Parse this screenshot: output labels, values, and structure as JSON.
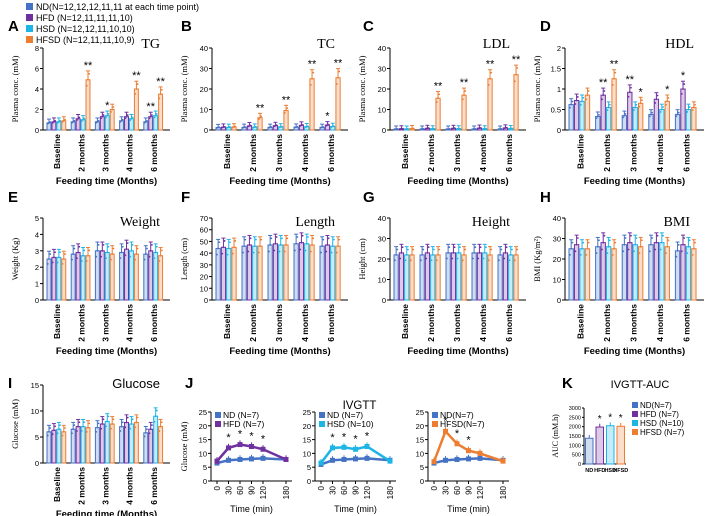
{
  "colors": {
    "ND": "#4472C4",
    "HFD": "#7030A0",
    "HSD": "#1DB4E6",
    "HFSD": "#ED7D31",
    "axis": "#000000"
  },
  "legend": {
    "groups": [
      "ND",
      "HFD",
      "HSD",
      "HFSD"
    ],
    "labels": [
      "ND(N=12,12,12,11,11 at each time point)",
      "HFD (N=12,11,11,11,10)",
      "HSD (N=12,12,11,10,10)",
      "HFSD (N=12,11,11,10,9)"
    ]
  },
  "chart_data": [
    {
      "id": "A",
      "type": "bar",
      "title": "TG",
      "ylabel": "Plasma conc. (mM)",
      "xlabel": "Feeding time (Months)",
      "ylim": [
        0,
        8
      ],
      "yticks": [
        0,
        2,
        4,
        6,
        8
      ],
      "categories": [
        "Baseline",
        "2 months",
        "3 months",
        "4 months",
        "6 months"
      ],
      "series": [
        {
          "name": "ND",
          "values": [
            0.7,
            0.8,
            0.8,
            0.9,
            0.8
          ]
        },
        {
          "name": "HFD",
          "values": [
            0.8,
            1.1,
            1.3,
            1.3,
            1.3
          ]
        },
        {
          "name": "HSD",
          "values": [
            0.8,
            1.0,
            1.4,
            1.1,
            1.4
          ]
        },
        {
          "name": "HFSD",
          "values": [
            0.9,
            4.9,
            2.0,
            4.0,
            3.5
          ]
        }
      ],
      "annotations": [
        {
          "category": 1,
          "series": 3,
          "label": "**"
        },
        {
          "category": 2,
          "series": 2,
          "label": "*"
        },
        {
          "category": 3,
          "series": 3,
          "label": "**"
        },
        {
          "category": 4,
          "series": 1,
          "label": "**"
        },
        {
          "category": 4,
          "series": 3,
          "label": "**"
        }
      ]
    },
    {
      "id": "B",
      "type": "bar",
      "title": "TC",
      "ylabel": "Plasma conc. (mM)",
      "xlabel": "Feeding time (Months)",
      "ylim": [
        0,
        40
      ],
      "yticks": [
        0,
        10,
        20,
        30,
        40
      ],
      "categories": [
        "Baseline",
        "2 months",
        "3 months",
        "4 months",
        "6 months"
      ],
      "series": [
        {
          "name": "ND",
          "values": [
            1.2,
            1.3,
            1.3,
            1.4,
            1.3
          ]
        },
        {
          "name": "HFD",
          "values": [
            1.4,
            2.0,
            2.1,
            2.3,
            2.4
          ]
        },
        {
          "name": "HSD",
          "values": [
            1.3,
            1.4,
            1.5,
            1.6,
            1.7
          ]
        },
        {
          "name": "HFSD",
          "values": [
            1.5,
            6.0,
            9.5,
            25.0,
            25.5
          ]
        }
      ],
      "annotations": [
        {
          "category": 1,
          "series": 3,
          "label": "**"
        },
        {
          "category": 2,
          "series": 3,
          "label": "**"
        },
        {
          "category": 3,
          "series": 3,
          "label": "**"
        },
        {
          "category": 4,
          "series": 1,
          "label": "*"
        },
        {
          "category": 4,
          "series": 3,
          "label": "**"
        }
      ]
    },
    {
      "id": "C",
      "type": "bar",
      "title": "LDL",
      "ylabel": "Plasma conc. (mM)",
      "xlabel": "Feeding time (Months)",
      "ylim": [
        0,
        40
      ],
      "yticks": [
        0,
        10,
        20,
        30,
        40
      ],
      "categories": [
        "Baseline",
        "2 months",
        "3 months",
        "4 months",
        "6 months"
      ],
      "series": [
        {
          "name": "ND",
          "values": [
            0.5,
            0.5,
            0.5,
            0.5,
            0.5
          ]
        },
        {
          "name": "HFD",
          "values": [
            0.6,
            0.8,
            0.8,
            0.9,
            1.0
          ]
        },
        {
          "name": "HSD",
          "values": [
            0.5,
            0.6,
            0.6,
            0.6,
            0.7
          ]
        },
        {
          "name": "HFSD",
          "values": [
            0.7,
            15.5,
            17.0,
            25.0,
            27.0
          ]
        }
      ],
      "annotations": [
        {
          "category": 1,
          "series": 3,
          "label": "**"
        },
        {
          "category": 2,
          "series": 3,
          "label": "**"
        },
        {
          "category": 3,
          "series": 3,
          "label": "**"
        },
        {
          "category": 4,
          "series": 3,
          "label": "**"
        }
      ]
    },
    {
      "id": "D",
      "type": "bar",
      "title": "HDL",
      "ylabel": "Plasma conc. (mM)",
      "xlabel": "Feeding time (Months)",
      "ylim": [
        0,
        2.0
      ],
      "yticks": [
        0.0,
        0.5,
        1.0,
        1.5,
        2.0
      ],
      "categories": [
        "Baseline",
        "2 months",
        "3 months",
        "4 months",
        "6 months"
      ],
      "series": [
        {
          "name": "ND",
          "values": [
            0.62,
            0.33,
            0.35,
            0.38,
            0.38
          ]
        },
        {
          "name": "HFD",
          "values": [
            0.72,
            0.85,
            0.92,
            0.75,
            1.0
          ]
        },
        {
          "name": "HSD",
          "values": [
            0.7,
            0.55,
            0.55,
            0.5,
            0.5
          ]
        },
        {
          "name": "HFSD",
          "values": [
            0.85,
            1.25,
            0.65,
            0.7,
            0.55
          ]
        }
      ],
      "annotations": [
        {
          "category": 1,
          "series": 1,
          "label": "**"
        },
        {
          "category": 1,
          "series": 3,
          "label": "**"
        },
        {
          "category": 2,
          "series": 1,
          "label": "**"
        },
        {
          "category": 2,
          "series": 3,
          "label": "*"
        },
        {
          "category": 3,
          "series": 3,
          "label": "*"
        },
        {
          "category": 4,
          "series": 1,
          "label": "*"
        }
      ]
    },
    {
      "id": "E",
      "type": "bar",
      "title": "Weight",
      "ylabel": "Weight (Kg)",
      "xlabel": "Feeding time (Months)",
      "ylim": [
        0,
        5
      ],
      "yticks": [
        0,
        1,
        2,
        3,
        4,
        5
      ],
      "categories": [
        "Baseline",
        "2 months",
        "3 months",
        "4 months",
        "6 months"
      ],
      "series": [
        {
          "name": "ND",
          "values": [
            2.5,
            2.8,
            3.0,
            2.9,
            2.8
          ]
        },
        {
          "name": "HFD",
          "values": [
            2.6,
            2.9,
            3.0,
            3.1,
            3.0
          ]
        },
        {
          "name": "HSD",
          "values": [
            2.6,
            2.7,
            2.9,
            3.0,
            2.9
          ]
        },
        {
          "name": "HFSD",
          "values": [
            2.5,
            2.7,
            2.8,
            2.8,
            2.7
          ]
        }
      ],
      "annotations": []
    },
    {
      "id": "F",
      "type": "bar",
      "title": "Length",
      "ylabel": "Length (cm)",
      "xlabel": "Feeding time (Months)",
      "ylim": [
        0,
        70
      ],
      "yticks": [
        0,
        10,
        20,
        30,
        40,
        50,
        60,
        70
      ],
      "categories": [
        "Baseline",
        "2 months",
        "3 months",
        "4 months",
        "6 months"
      ],
      "series": [
        {
          "name": "ND",
          "values": [
            44,
            46,
            47,
            48,
            46
          ]
        },
        {
          "name": "HFD",
          "values": [
            45,
            47,
            48,
            49,
            47
          ]
        },
        {
          "name": "HSD",
          "values": [
            44,
            46,
            47,
            48,
            46
          ]
        },
        {
          "name": "HFSD",
          "values": [
            45,
            46,
            47,
            47,
            46
          ]
        }
      ],
      "annotations": []
    },
    {
      "id": "G",
      "type": "bar",
      "title": "Height",
      "ylabel": "Height (cm)",
      "xlabel": "Feeding time (Months)",
      "ylim": [
        0,
        40
      ],
      "yticks": [
        0,
        10,
        20,
        30,
        40
      ],
      "categories": [
        "Baseline",
        "2 months",
        "3 months",
        "4 months",
        "6 months"
      ],
      "series": [
        {
          "name": "ND",
          "values": [
            22,
            22,
            23,
            23,
            22
          ]
        },
        {
          "name": "HFD",
          "values": [
            23,
            23,
            23,
            23,
            23
          ]
        },
        {
          "name": "HSD",
          "values": [
            22,
            22,
            23,
            23,
            22
          ]
        },
        {
          "name": "HFSD",
          "values": [
            22,
            22,
            22,
            22,
            22
          ]
        }
      ],
      "annotations": []
    },
    {
      "id": "H",
      "type": "bar",
      "title": "BMI",
      "ylabel": "BMI (Kg/m²)",
      "xlabel": "Feeding time (Months)",
      "ylim": [
        0,
        40
      ],
      "yticks": [
        0,
        10,
        20,
        30,
        40
      ],
      "categories": [
        "Baseline",
        "2 months",
        "3 months",
        "4 months",
        "6 months"
      ],
      "series": [
        {
          "name": "ND",
          "values": [
            25,
            26,
            27,
            27,
            24
          ]
        },
        {
          "name": "HFD",
          "values": [
            27,
            28,
            28,
            28,
            27
          ]
        },
        {
          "name": "HSD",
          "values": [
            25,
            26,
            27,
            28,
            26
          ]
        },
        {
          "name": "HFSD",
          "values": [
            25,
            25,
            26,
            26,
            25
          ]
        }
      ],
      "annotations": []
    },
    {
      "id": "I",
      "type": "bar",
      "title": "Glucose",
      "ylabel": "Glucose (mM)",
      "xlabel": "Feeding time (Months)",
      "ylim": [
        0,
        15
      ],
      "yticks": [
        0,
        5,
        10,
        15
      ],
      "categories": [
        "Baseline",
        "2 months",
        "3 months",
        "4 months",
        "6 months"
      ],
      "series": [
        {
          "name": "ND",
          "values": [
            6.0,
            6.5,
            6.8,
            7.0,
            5.8
          ]
        },
        {
          "name": "HFD",
          "values": [
            6.3,
            7.0,
            7.5,
            7.8,
            6.5
          ]
        },
        {
          "name": "HSD",
          "values": [
            6.5,
            7.0,
            8.0,
            7.5,
            9.0
          ]
        },
        {
          "name": "HFSD",
          "values": [
            6.0,
            6.8,
            7.5,
            7.8,
            7.0
          ]
        }
      ],
      "annotations": []
    },
    {
      "id": "J1",
      "type": "line",
      "title": "",
      "ylabel": "Glucose (mM)",
      "xlabel": "Time (min)",
      "ylim": [
        0,
        25
      ],
      "yticks": [
        0,
        5,
        10,
        15,
        20,
        25
      ],
      "x": [
        0,
        30,
        60,
        90,
        120,
        180
      ],
      "xticks": [
        0,
        30,
        60,
        90,
        120,
        180
      ],
      "series": [
        {
          "name": "ND (N=7)",
          "group": "ND",
          "values": [
            6.5,
            7.5,
            7.8,
            8.0,
            8.2,
            7.8
          ]
        },
        {
          "name": "HFD (N=7)",
          "group": "HFD",
          "values": [
            7.2,
            12.0,
            13.2,
            12.5,
            11.5,
            7.8
          ]
        }
      ],
      "annotations": [
        {
          "x": 30,
          "label": "*"
        },
        {
          "x": 60,
          "label": "*"
        },
        {
          "x": 90,
          "label": "*"
        },
        {
          "x": 120,
          "label": "*"
        }
      ]
    },
    {
      "id": "J2",
      "type": "line",
      "title": "IVGTT",
      "ylabel": "",
      "xlabel": "Time (min)",
      "ylim": [
        0,
        25
      ],
      "yticks": [
        0,
        5,
        10,
        15,
        20,
        25
      ],
      "x": [
        0,
        30,
        60,
        90,
        120,
        180
      ],
      "xticks": [
        0,
        30,
        60,
        90,
        120,
        180
      ],
      "series": [
        {
          "name": "ND (N=7)",
          "group": "ND",
          "values": [
            6.0,
            7.5,
            7.8,
            8.0,
            8.2,
            7.5
          ]
        },
        {
          "name": "HSD (N=10)",
          "group": "HSD",
          "values": [
            6.5,
            12.0,
            12.2,
            11.5,
            12.5,
            7.2
          ]
        }
      ],
      "annotations": [
        {
          "x": 30,
          "label": "*"
        },
        {
          "x": 60,
          "label": "*"
        },
        {
          "x": 90,
          "label": "*"
        },
        {
          "x": 120,
          "label": "*"
        }
      ]
    },
    {
      "id": "J3",
      "type": "line",
      "title": "",
      "ylabel": "",
      "xlabel": "Time (min)",
      "ylim": [
        0,
        25
      ],
      "yticks": [
        0,
        5,
        10,
        15,
        20,
        25
      ],
      "x": [
        0,
        30,
        60,
        90,
        120,
        180
      ],
      "xticks": [
        0,
        30,
        60,
        90,
        120,
        180
      ],
      "series": [
        {
          "name": "ND(N=7)",
          "group": "ND",
          "values": [
            6.5,
            7.5,
            7.8,
            8.0,
            8.2,
            7.5
          ]
        },
        {
          "name": "HFSD(N=7)",
          "group": "HFSD",
          "values": [
            7.0,
            18.0,
            13.5,
            11.0,
            10.0,
            7.2
          ]
        }
      ],
      "annotations": [
        {
          "x": 30,
          "label": "*"
        },
        {
          "x": 60,
          "label": "*"
        },
        {
          "x": 90,
          "label": "*"
        }
      ]
    },
    {
      "id": "K",
      "type": "bar",
      "title": "IVGTT-AUC",
      "ylabel": "AUC (mM.h)",
      "xlabel": "",
      "ylim": [
        0,
        3000
      ],
      "yticks": [
        0,
        500,
        1000,
        1500,
        2000,
        2500,
        3000
      ],
      "categories": [
        "ND",
        "HFD",
        "HSD",
        "HFSD"
      ],
      "series": [
        {
          "name": "AUC",
          "values": [
            1380,
            1980,
            2050,
            2020
          ]
        }
      ],
      "legend": [
        "ND(N=7)",
        "HFD (N=7)",
        "HSD (N=10)",
        "HFSD (N=7)"
      ],
      "annotations": [
        {
          "category": 1,
          "label": "*"
        },
        {
          "category": 2,
          "label": "*"
        },
        {
          "category": 3,
          "label": "*"
        }
      ]
    }
  ],
  "panel_letters": [
    "A",
    "B",
    "C",
    "D",
    "E",
    "F",
    "G",
    "H",
    "I",
    "J",
    "K"
  ]
}
